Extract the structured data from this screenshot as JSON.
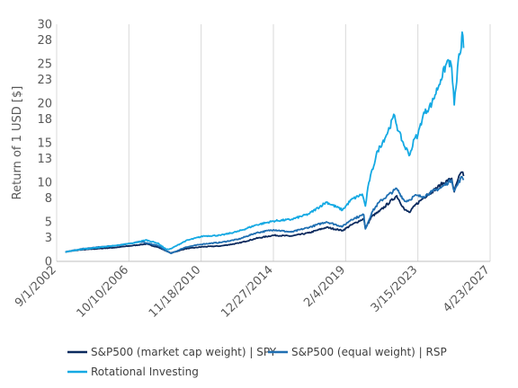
{
  "chart_data": {
    "type": "line",
    "title": "",
    "xlabel": "",
    "ylabel": "Return of 1 USD [$]",
    "x_axis_type": "date",
    "xlim": [
      "2002-09-01",
      "2027-04-23"
    ],
    "ylim": [
      0,
      30
    ],
    "y_ticks": [
      0,
      3,
      5,
      8,
      10,
      13,
      15,
      18,
      20,
      23,
      25,
      28,
      30
    ],
    "x_tick_labels": [
      "9/1/2002",
      "10/10/2006",
      "11/18/2010",
      "12/27/2014",
      "2/4/2019",
      "3/15/2023",
      "4/23/2027"
    ],
    "x_tick_dates": [
      "2002-09-01",
      "2006-10-10",
      "2010-11-18",
      "2014-12-27",
      "2019-02-04",
      "2023-03-15",
      "2027-04-23"
    ],
    "grid": {
      "vertical": true,
      "horizontal": false
    },
    "legend_position": "bottom",
    "series": [
      {
        "name": "S&P500 (market cap weight) | SPY",
        "color": "#0b2a5e",
        "points": [
          [
            "2003-03-01",
            1.2
          ],
          [
            "2004-01-01",
            1.45
          ],
          [
            "2005-01-01",
            1.6
          ],
          [
            "2006-01-01",
            1.75
          ],
          [
            "2007-01-01",
            2.0
          ],
          [
            "2007-10-01",
            2.2
          ],
          [
            "2008-06-01",
            1.8
          ],
          [
            "2008-12-01",
            1.3
          ],
          [
            "2009-03-01",
            1.05
          ],
          [
            "2010-01-01",
            1.6
          ],
          [
            "2011-01-01",
            1.85
          ],
          [
            "2012-01-01",
            1.95
          ],
          [
            "2013-01-01",
            2.3
          ],
          [
            "2014-01-01",
            2.9
          ],
          [
            "2015-01-01",
            3.3
          ],
          [
            "2016-01-01",
            3.2
          ],
          [
            "2017-01-01",
            3.6
          ],
          [
            "2018-01-01",
            4.3
          ],
          [
            "2018-12-01",
            3.9
          ],
          [
            "2019-06-01",
            4.6
          ],
          [
            "2020-02-15",
            5.4
          ],
          [
            "2020-03-20",
            4.2
          ],
          [
            "2020-08-01",
            5.7
          ],
          [
            "2021-01-01",
            6.3
          ],
          [
            "2021-12-31",
            8.3
          ],
          [
            "2022-06-15",
            6.5
          ],
          [
            "2022-10-01",
            6.2
          ],
          [
            "2023-01-01",
            7.0
          ],
          [
            "2023-07-01",
            8.0
          ],
          [
            "2024-01-01",
            8.8
          ],
          [
            "2024-07-01",
            9.7
          ],
          [
            "2025-02-15",
            10.5
          ],
          [
            "2025-04-08",
            8.8
          ],
          [
            "2025-07-01",
            10.5
          ],
          [
            "2025-09-15",
            11.3
          ],
          [
            "2025-10-20",
            10.8
          ]
        ]
      },
      {
        "name": "S&P500 (equal weight) | RSP",
        "color": "#1f6fb2",
        "points": [
          [
            "2003-03-01",
            1.2
          ],
          [
            "2004-01-01",
            1.55
          ],
          [
            "2005-01-01",
            1.8
          ],
          [
            "2006-01-01",
            2.0
          ],
          [
            "2007-01-01",
            2.3
          ],
          [
            "2007-06-01",
            2.5
          ],
          [
            "2008-06-01",
            2.0
          ],
          [
            "2008-12-01",
            1.3
          ],
          [
            "2009-03-01",
            1.0
          ],
          [
            "2010-01-01",
            1.8
          ],
          [
            "2011-01-01",
            2.2
          ],
          [
            "2012-01-01",
            2.4
          ],
          [
            "2013-01-01",
            2.8
          ],
          [
            "2014-01-01",
            3.6
          ],
          [
            "2015-01-01",
            4.0
          ],
          [
            "2016-01-01",
            3.7
          ],
          [
            "2017-01-01",
            4.3
          ],
          [
            "2018-01-01",
            5.0
          ],
          [
            "2018-12-01",
            4.4
          ],
          [
            "2019-06-01",
            5.3
          ],
          [
            "2020-02-15",
            5.9
          ],
          [
            "2020-03-20",
            4.1
          ],
          [
            "2020-08-01",
            6.2
          ],
          [
            "2021-01-01",
            7.5
          ],
          [
            "2021-12-31",
            9.2
          ],
          [
            "2022-06-15",
            7.6
          ],
          [
            "2022-10-01",
            7.8
          ],
          [
            "2023-01-01",
            8.3
          ],
          [
            "2023-07-01",
            8.2
          ],
          [
            "2024-01-01",
            8.8
          ],
          [
            "2024-07-01",
            9.3
          ],
          [
            "2025-02-15",
            10.3
          ],
          [
            "2025-04-08",
            8.9
          ],
          [
            "2025-07-01",
            9.9
          ],
          [
            "2025-09-15",
            10.7
          ],
          [
            "2025-10-20",
            10.3
          ]
        ]
      },
      {
        "name": "Rotational Investing",
        "color": "#14a9e3",
        "points": [
          [
            "2003-03-01",
            1.2
          ],
          [
            "2004-01-01",
            1.5
          ],
          [
            "2005-01-01",
            1.75
          ],
          [
            "2006-01-01",
            2.0
          ],
          [
            "2007-01-01",
            2.3
          ],
          [
            "2007-10-01",
            2.7
          ],
          [
            "2008-06-01",
            2.3
          ],
          [
            "2008-12-01",
            1.5
          ],
          [
            "2009-03-01",
            1.6
          ],
          [
            "2010-01-01",
            2.6
          ],
          [
            "2011-01-01",
            3.2
          ],
          [
            "2012-01-01",
            3.3
          ],
          [
            "2013-01-01",
            3.8
          ],
          [
            "2014-01-01",
            4.6
          ],
          [
            "2015-01-01",
            5.1
          ],
          [
            "2016-01-01",
            5.3
          ],
          [
            "2017-01-01",
            6.0
          ],
          [
            "2018-01-01",
            7.5
          ],
          [
            "2018-12-01",
            6.5
          ],
          [
            "2019-06-01",
            7.8
          ],
          [
            "2020-01-15",
            8.5
          ],
          [
            "2020-03-20",
            7.0
          ],
          [
            "2020-06-01",
            10.0
          ],
          [
            "2020-12-01",
            14.0
          ],
          [
            "2021-06-01",
            16.0
          ],
          [
            "2021-11-15",
            18.5
          ],
          [
            "2022-02-01",
            16.5
          ],
          [
            "2022-06-15",
            14.5
          ],
          [
            "2022-10-01",
            13.5
          ],
          [
            "2023-01-01",
            15.5
          ],
          [
            "2023-03-15",
            16.0
          ],
          [
            "2023-07-01",
            18.5
          ],
          [
            "2024-01-01",
            20.0
          ],
          [
            "2024-07-01",
            23.0
          ],
          [
            "2024-12-01",
            25.5
          ],
          [
            "2025-02-15",
            24.5
          ],
          [
            "2025-04-08",
            19.8
          ],
          [
            "2025-05-15",
            22.0
          ],
          [
            "2025-07-01",
            25.5
          ],
          [
            "2025-09-01",
            27.0
          ],
          [
            "2025-09-20",
            29.0
          ],
          [
            "2025-10-20",
            27.0
          ]
        ]
      }
    ]
  }
}
